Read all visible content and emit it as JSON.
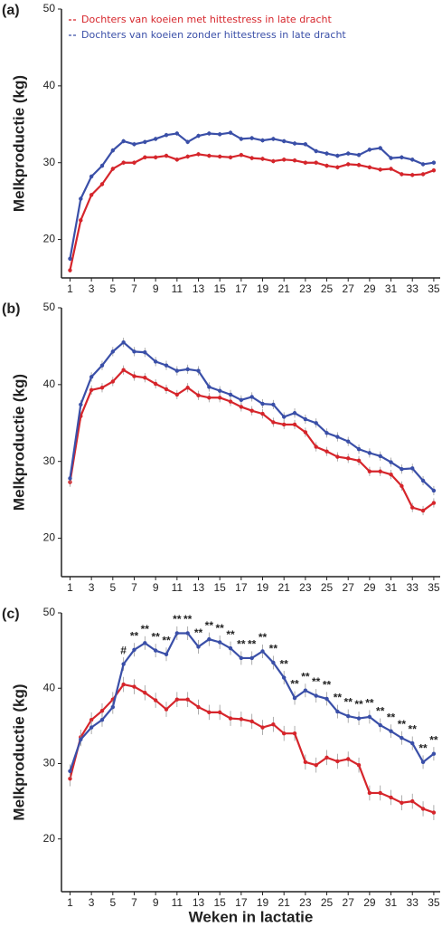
{
  "chart_data": [
    {
      "type": "line",
      "panel_label": "(a)",
      "ylabel": "Melkproductie (kg)",
      "xlim": [
        0.2,
        35.6
      ],
      "xticks": [
        1,
        3,
        5,
        7,
        9,
        11,
        13,
        15,
        17,
        19,
        21,
        23,
        25,
        27,
        29,
        31,
        33,
        35
      ],
      "ylim": [
        15,
        50
      ],
      "yticks": [
        20,
        30,
        40,
        50
      ],
      "legend": "upper left",
      "x": [
        1,
        2,
        3,
        4,
        5,
        6,
        7,
        8,
        9,
        10,
        11,
        12,
        13,
        14,
        15,
        16,
        17,
        18,
        19,
        20,
        21,
        22,
        23,
        24,
        25,
        26,
        27,
        28,
        29,
        30,
        31,
        32,
        33,
        34,
        35
      ],
      "series": [
        {
          "name": "Dochters van koeien met hittestress in late dracht",
          "color": "#d6252b",
          "values": [
            16,
            22.5,
            25.8,
            27.2,
            29.2,
            30,
            30,
            30.7,
            30.7,
            30.9,
            30.4,
            30.8,
            31.1,
            30.9,
            30.8,
            30.7,
            31,
            30.6,
            30.5,
            30.2,
            30.4,
            30.3,
            30,
            30,
            29.6,
            29.4,
            29.8,
            29.7,
            29.4,
            29.1,
            29.2,
            28.5,
            28.4,
            28.5,
            29
          ],
          "errors": [
            0.3,
            0.3,
            0.3,
            0.3,
            0.3,
            0.3,
            0.3,
            0.3,
            0.3,
            0.3,
            0.3,
            0.3,
            0.3,
            0.3,
            0.3,
            0.3,
            0.3,
            0.3,
            0.3,
            0.3,
            0.3,
            0.3,
            0.3,
            0.3,
            0.3,
            0.3,
            0.3,
            0.3,
            0.3,
            0.3,
            0.3,
            0.3,
            0.3,
            0.3,
            0.3
          ]
        },
        {
          "name": "Dochters van koeien zonder hittestress in late dracht",
          "color": "#3a4fa8",
          "values": [
            17.5,
            25.3,
            28.2,
            29.6,
            31.6,
            32.8,
            32.4,
            32.7,
            33.1,
            33.6,
            33.8,
            32.7,
            33.5,
            33.8,
            33.7,
            33.9,
            33.1,
            33.2,
            32.9,
            33.1,
            32.8,
            32.5,
            32.4,
            31.5,
            31.2,
            30.9,
            31.2,
            31,
            31.7,
            31.9,
            30.6,
            30.7,
            30.4,
            29.8,
            30
          ],
          "errors": [
            0.3,
            0.3,
            0.3,
            0.3,
            0.3,
            0.3,
            0.3,
            0.3,
            0.3,
            0.3,
            0.3,
            0.3,
            0.3,
            0.3,
            0.3,
            0.3,
            0.3,
            0.3,
            0.3,
            0.3,
            0.3,
            0.3,
            0.3,
            0.3,
            0.3,
            0.3,
            0.3,
            0.3,
            0.3,
            0.3,
            0.3,
            0.3,
            0.3,
            0.3,
            0.3
          ]
        }
      ]
    },
    {
      "type": "line",
      "panel_label": "(b)",
      "ylabel": "Melkproductie (kg)",
      "xlim": [
        0.2,
        35.6
      ],
      "xticks": [
        1,
        3,
        5,
        7,
        9,
        11,
        13,
        15,
        17,
        19,
        21,
        23,
        25,
        27,
        29,
        31,
        33,
        35
      ],
      "ylim": [
        15,
        50
      ],
      "yticks": [
        20,
        30,
        40,
        50
      ],
      "x": [
        1,
        2,
        3,
        4,
        5,
        6,
        7,
        8,
        9,
        10,
        11,
        12,
        13,
        14,
        15,
        16,
        17,
        18,
        19,
        20,
        21,
        22,
        23,
        24,
        25,
        26,
        27,
        28,
        29,
        30,
        31,
        32,
        33,
        34,
        35
      ],
      "series": [
        {
          "color": "#d6252b",
          "values": [
            27.3,
            35.9,
            39.3,
            39.6,
            40.4,
            41.9,
            41.1,
            40.9,
            40.1,
            39.4,
            38.7,
            39.6,
            38.6,
            38.3,
            38.3,
            37.8,
            37.1,
            36.6,
            36.2,
            35.1,
            34.8,
            34.8,
            33.8,
            31.9,
            31.3,
            30.6,
            30.4,
            30.1,
            28.7,
            28.7,
            28.3,
            26.8,
            24,
            23.6,
            24.6
          ],
          "errors": [
            0.6,
            0.6,
            0.6,
            0.6,
            0.6,
            0.6,
            0.6,
            0.6,
            0.6,
            0.6,
            0.6,
            0.6,
            0.6,
            0.6,
            0.6,
            0.6,
            0.6,
            0.6,
            0.6,
            0.6,
            0.6,
            0.6,
            0.6,
            0.6,
            0.6,
            0.6,
            0.6,
            0.6,
            0.6,
            0.6,
            0.6,
            0.6,
            0.6,
            0.6,
            0.6
          ]
        },
        {
          "color": "#3a4fa8",
          "values": [
            27.8,
            37.4,
            41,
            42.5,
            44.3,
            45.5,
            44.3,
            44.2,
            43,
            42.5,
            41.8,
            42,
            41.8,
            39.7,
            39.2,
            38.7,
            38,
            38.4,
            37.5,
            37.4,
            35.8,
            36.3,
            35.5,
            35,
            33.7,
            33.2,
            32.6,
            31.6,
            31.1,
            30.7,
            29.9,
            29,
            29.1,
            27.5,
            26.2
          ],
          "errors": [
            0.6,
            0.6,
            0.6,
            0.6,
            0.6,
            0.6,
            0.6,
            0.6,
            0.6,
            0.6,
            0.6,
            0.6,
            0.6,
            0.6,
            0.6,
            0.6,
            0.6,
            0.6,
            0.6,
            0.6,
            0.6,
            0.6,
            0.6,
            0.6,
            0.6,
            0.6,
            0.6,
            0.6,
            0.6,
            0.6,
            0.6,
            0.6,
            0.6,
            0.6,
            0.6
          ]
        }
      ]
    },
    {
      "type": "line",
      "panel_label": "(c)",
      "ylabel": "Melkproductie (kg)",
      "xlabel": "Weken in lactatie",
      "xlim": [
        0.2,
        35.6
      ],
      "xticks": [
        1,
        3,
        5,
        7,
        9,
        11,
        13,
        15,
        17,
        19,
        21,
        23,
        25,
        27,
        29,
        31,
        33,
        35
      ],
      "ylim": [
        13,
        50
      ],
      "yticks": [
        20,
        30,
        40,
        50
      ],
      "x": [
        1,
        2,
        3,
        4,
        5,
        6,
        7,
        8,
        9,
        10,
        11,
        12,
        13,
        14,
        15,
        16,
        17,
        18,
        19,
        20,
        21,
        22,
        23,
        24,
        25,
        26,
        27,
        28,
        29,
        30,
        31,
        32,
        33,
        34,
        35
      ],
      "significance": [
        null,
        null,
        null,
        null,
        null,
        "#",
        "**",
        "**",
        "**",
        "**",
        "**",
        "**",
        "**",
        "**",
        "**",
        "**",
        "**",
        "**",
        "**",
        "**",
        "**",
        "**",
        "**",
        "**",
        "**",
        "**",
        "**",
        "**",
        "**",
        "**",
        "**",
        "**",
        "**",
        "**",
        "**"
      ],
      "series": [
        {
          "color": "#d6252b",
          "values": [
            28,
            33.5,
            35.8,
            37,
            38.5,
            40.5,
            40.2,
            39.4,
            38.4,
            37.2,
            38.5,
            38.5,
            37.5,
            36.8,
            36.8,
            36,
            35.9,
            35.6,
            34.8,
            35.2,
            34,
            34,
            30.2,
            29.8,
            30.8,
            30.3,
            30.6,
            29.8,
            26.1,
            26.1,
            25.5,
            24.8,
            25,
            24,
            23.5
          ],
          "errors": [
            1,
            1,
            1,
            1,
            1,
            1,
            1,
            1,
            1,
            1,
            1,
            1,
            1,
            1,
            1,
            1,
            1,
            1,
            1,
            1,
            1,
            1,
            1,
            1,
            1,
            1,
            1,
            1,
            1,
            1,
            1,
            1,
            1,
            1,
            1
          ]
        },
        {
          "color": "#3a4fa8",
          "values": [
            29,
            33.2,
            34.8,
            35.8,
            37.5,
            43.2,
            45.1,
            46,
            45,
            44.5,
            47.3,
            47.3,
            45.5,
            46.5,
            46.1,
            45.3,
            44,
            44,
            44.9,
            43.4,
            41.4,
            38.7,
            39.7,
            39,
            38.6,
            36.9,
            36.3,
            36,
            36.2,
            35.1,
            34.3,
            33.4,
            32.7,
            30.2,
            31.3
          ],
          "errors": [
            0.9,
            0.9,
            0.9,
            0.9,
            0.9,
            0.9,
            0.9,
            0.9,
            0.9,
            0.9,
            0.9,
            0.9,
            0.9,
            0.9,
            0.9,
            0.9,
            0.9,
            0.9,
            0.9,
            0.9,
            0.9,
            0.9,
            0.9,
            0.9,
            0.9,
            0.9,
            0.9,
            0.9,
            0.9,
            0.9,
            0.9,
            0.9,
            0.9,
            0.9,
            0.9
          ]
        }
      ]
    }
  ]
}
